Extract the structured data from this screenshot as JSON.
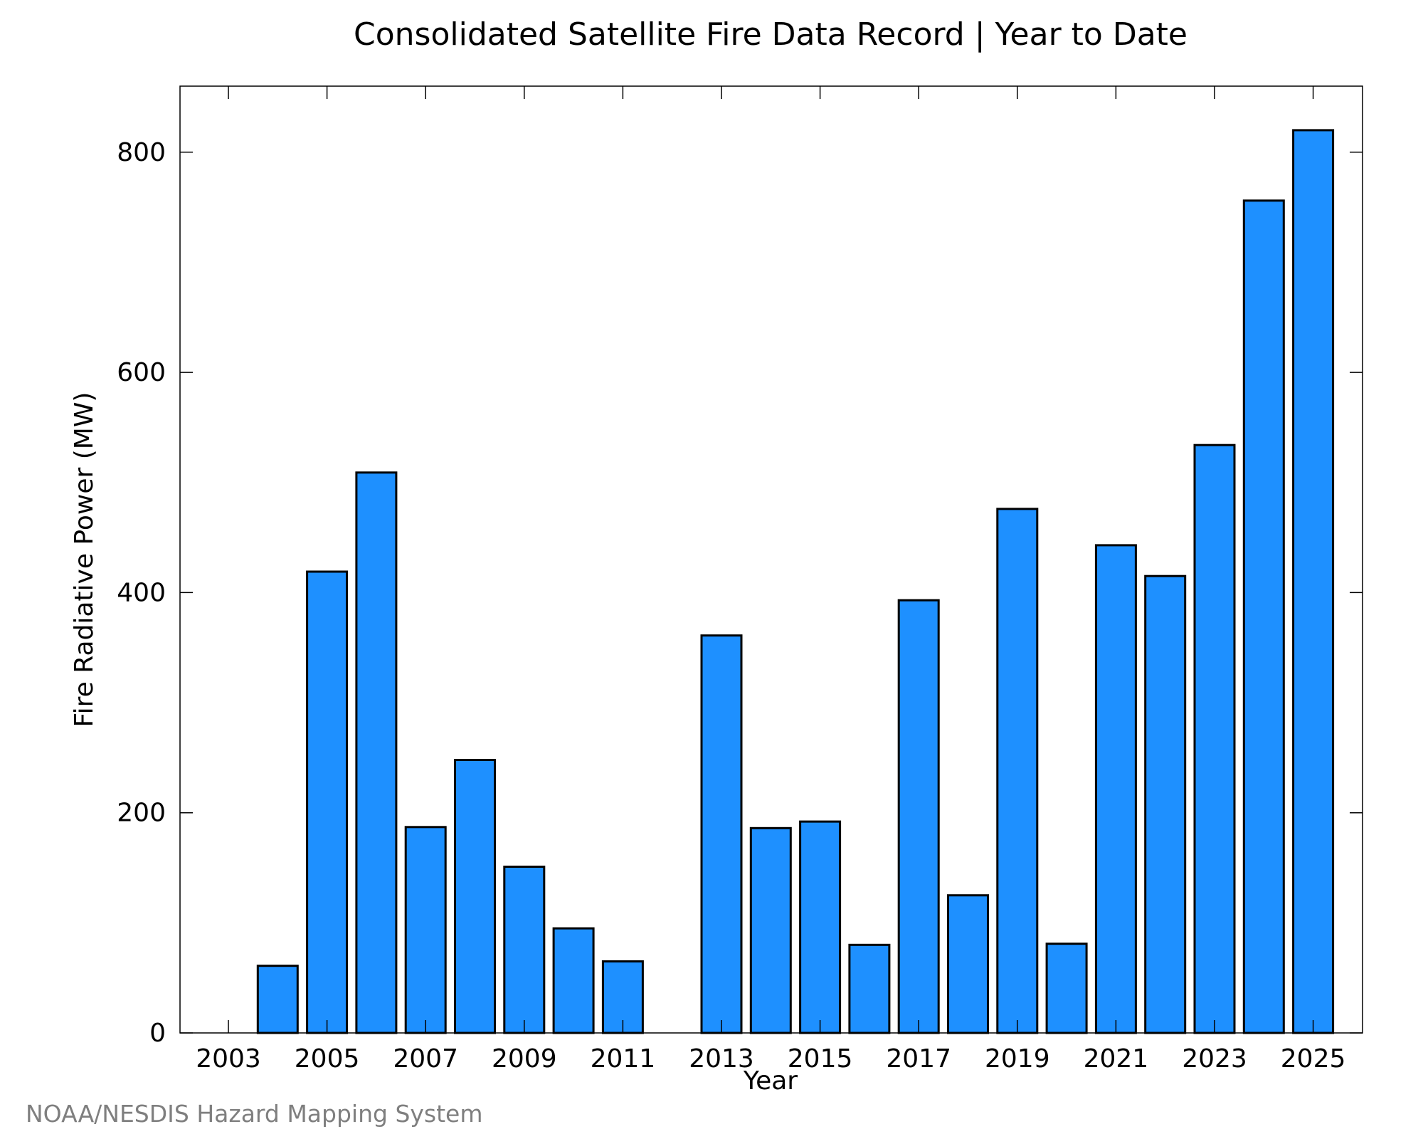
{
  "chart_data": {
    "type": "bar",
    "title": "Consolidated Satellite Fire Data Record | Year to Date",
    "xlabel": "Year",
    "ylabel": "Fire Radiative Power (MW)",
    "categories": [
      "2003",
      "2004",
      "2005",
      "2006",
      "2007",
      "2008",
      "2009",
      "2010",
      "2011",
      "2012",
      "2013",
      "2014",
      "2015",
      "2016",
      "2017",
      "2018",
      "2019",
      "2020",
      "2021",
      "2022",
      "2023",
      "2024",
      "2025"
    ],
    "x_tick_labels": [
      "2003",
      "2005",
      "2007",
      "2009",
      "2011",
      "2013",
      "2015",
      "2017",
      "2019",
      "2021",
      "2023",
      "2025"
    ],
    "values": [
      0,
      61,
      419,
      509,
      187,
      248,
      151,
      95,
      65,
      0,
      361,
      186,
      192,
      80,
      393,
      125,
      476,
      81,
      443,
      415,
      534,
      756,
      820
    ],
    "ylim": [
      0,
      860
    ],
    "y_ticks": [
      0,
      200,
      400,
      600,
      800
    ],
    "grid": false,
    "colors": {
      "bar_fill": "#1e90ff",
      "bar_stroke": "#000000"
    }
  },
  "footer": {
    "credit": "NOAA/NESDIS Hazard Mapping System"
  }
}
